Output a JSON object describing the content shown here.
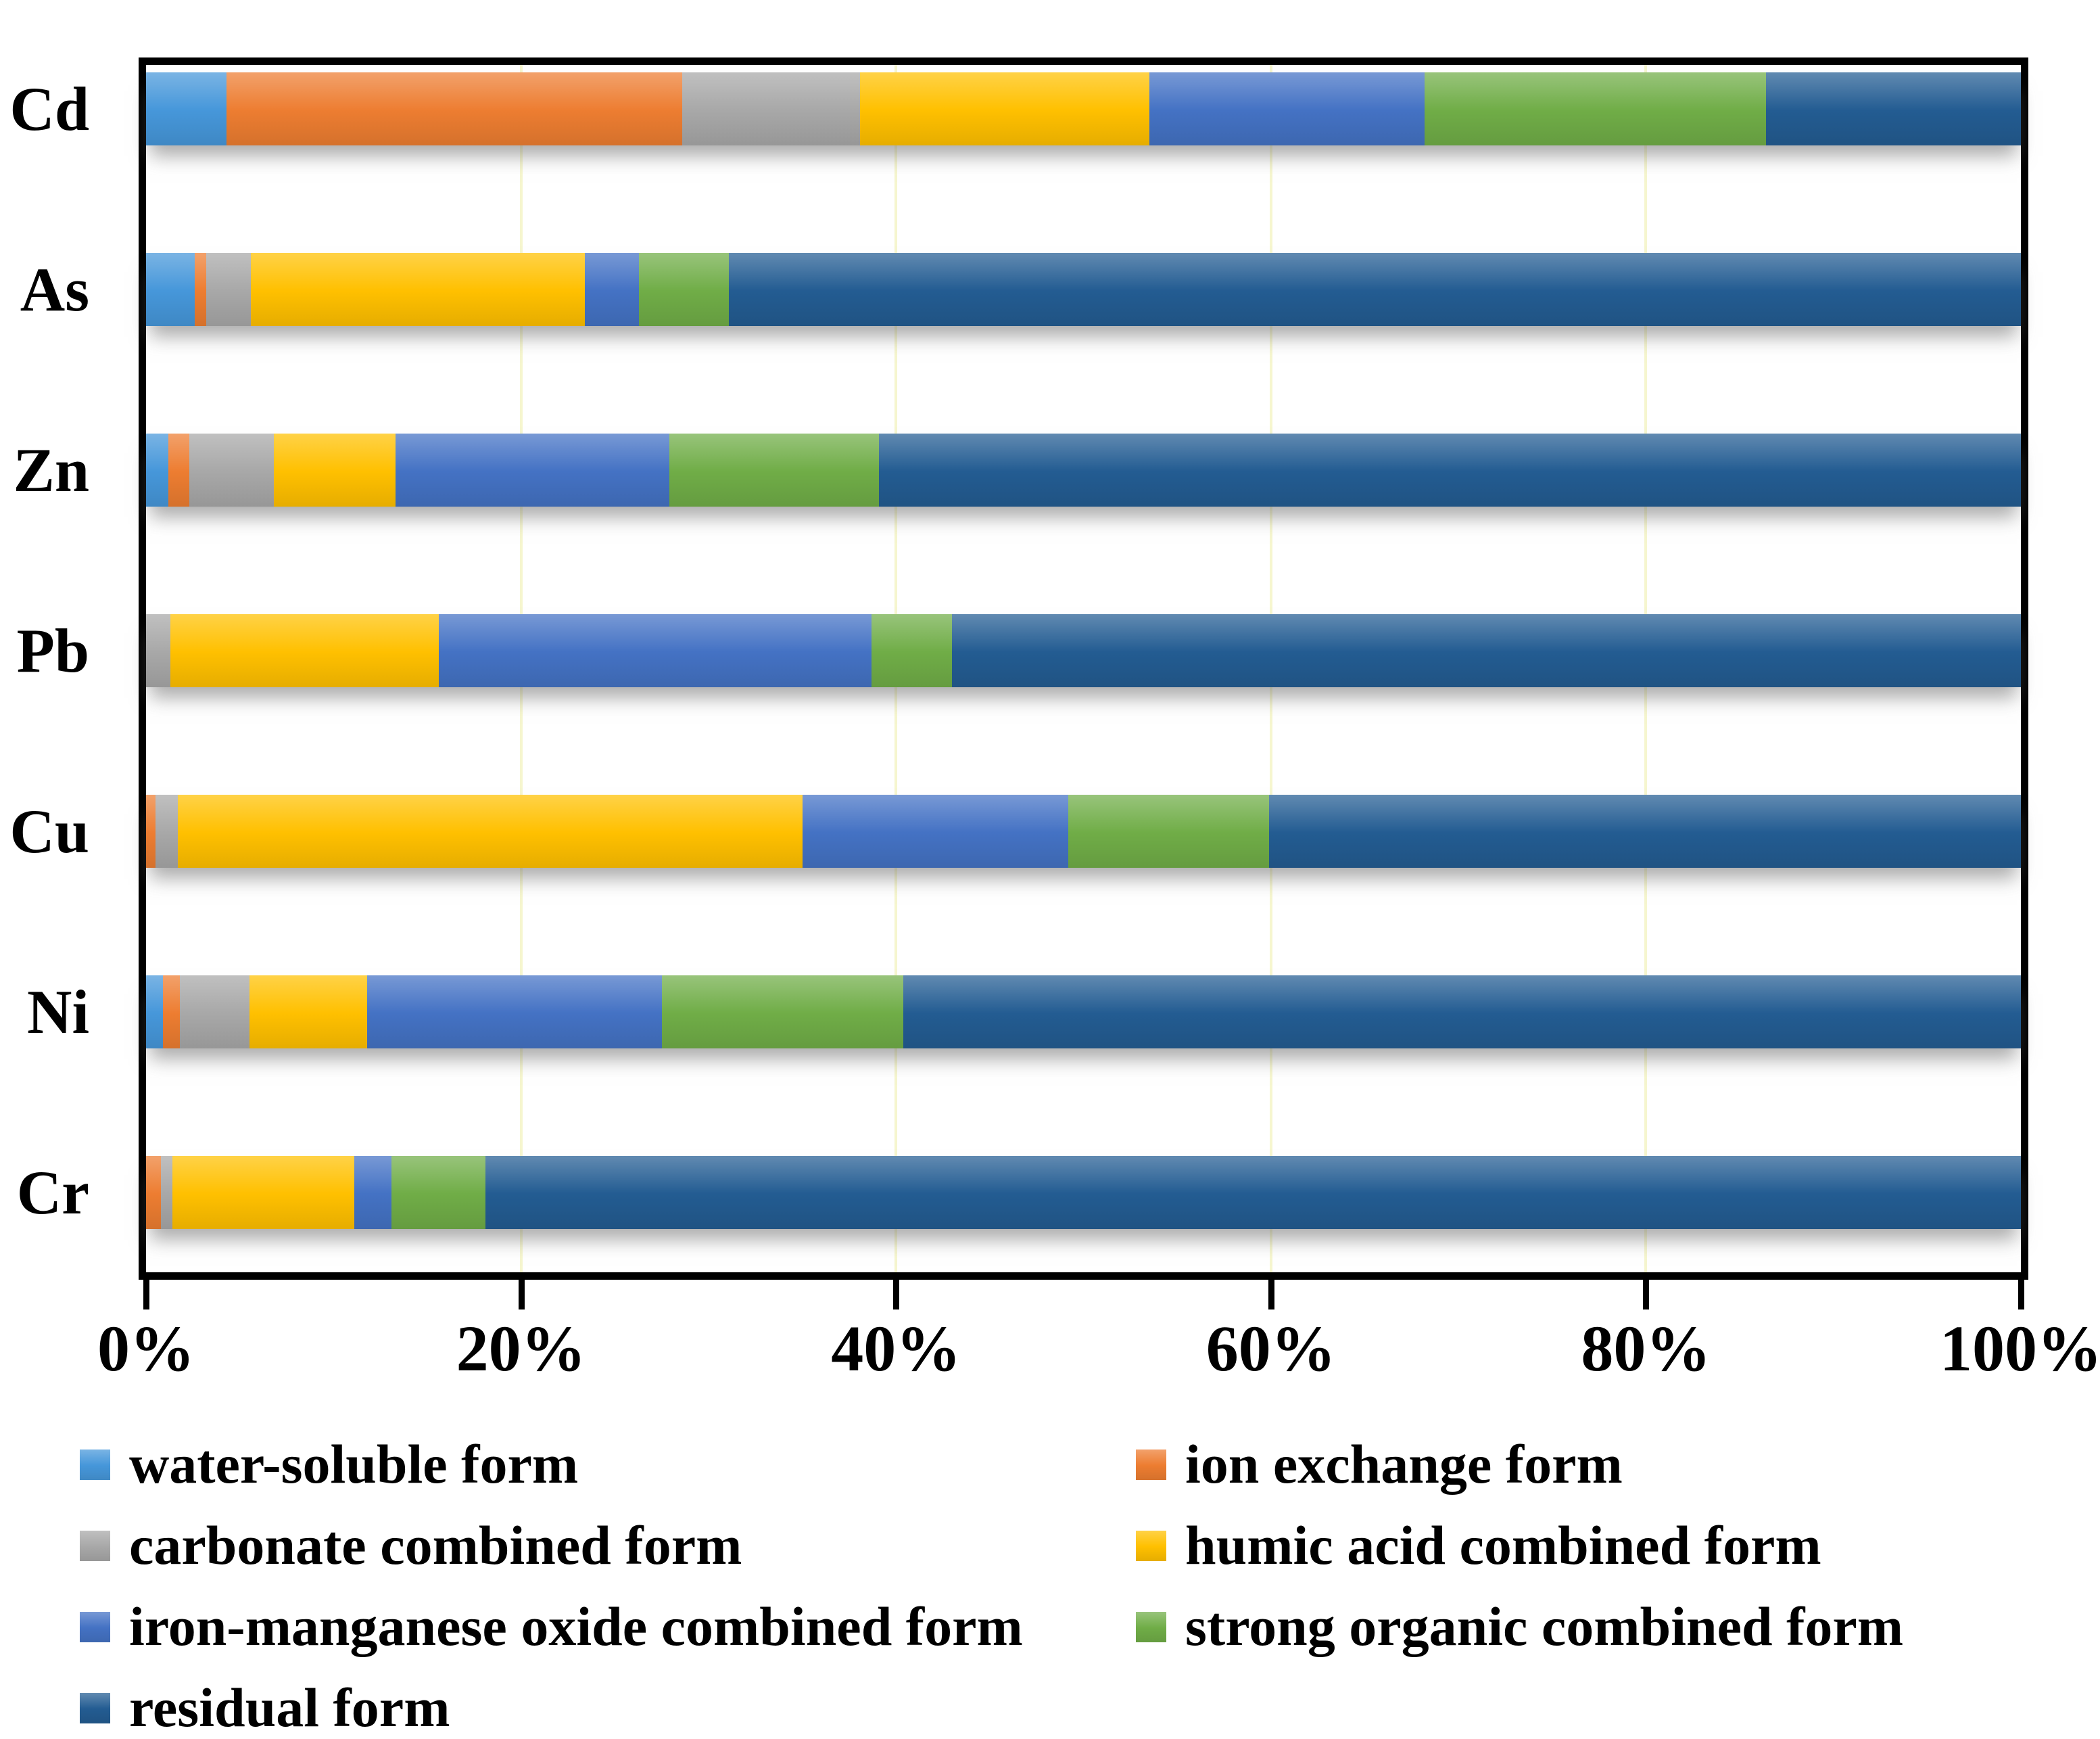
{
  "chart_data": {
    "type": "bar",
    "stacked": true,
    "orientation": "horizontal",
    "title": "",
    "xlabel": "",
    "ylabel": "",
    "xlim": [
      0,
      100
    ],
    "x_ticks": [
      "0%",
      "20%",
      "40%",
      "60%",
      "80%",
      "100%"
    ],
    "x_tick_values": [
      0,
      20,
      40,
      60,
      80,
      100
    ],
    "grid": "vertical-light-yellow",
    "legend_position": "bottom-two-columns",
    "categories": [
      "Cd",
      "As",
      "Zn",
      "Pb",
      "Cu",
      "Ni",
      "Cr"
    ],
    "series": [
      {
        "name": "water-soluble form",
        "color": "#4697DA",
        "values": [
          4.3,
          2.6,
          1.2,
          0,
          0,
          0.9,
          0
        ]
      },
      {
        "name": "ion exchange form",
        "color": "#ED7D31",
        "values": [
          24.3,
          0.6,
          1.1,
          0,
          0.5,
          0.9,
          0.8
        ]
      },
      {
        "name": "carbonate combined form",
        "color": "#A8A8A8",
        "values": [
          9.5,
          2.4,
          4.5,
          1.3,
          1.2,
          3.7,
          0.6
        ]
      },
      {
        "name": "humic acid combined form",
        "color": "#FFC000",
        "values": [
          15.4,
          17.8,
          6.5,
          14.3,
          33.3,
          6.3,
          9.7
        ]
      },
      {
        "name": "iron-manganese oxide combined form",
        "color": "#4472C4",
        "values": [
          14.7,
          2.9,
          14.6,
          23.1,
          14.2,
          15.7,
          2.0
        ]
      },
      {
        "name": "strong organic combined form",
        "color": "#70AD47",
        "values": [
          18.2,
          4.8,
          11.2,
          4.3,
          10.7,
          12.9,
          5.0
        ]
      },
      {
        "name": "residual form",
        "color": "#235C92",
        "values": [
          13.6,
          68.9,
          60.9,
          57.0,
          40.1,
          59.6,
          81.9
        ]
      }
    ],
    "colors": {
      "grid_line": "#f6f6cf",
      "axis": "#000000",
      "background": "#ffffff"
    }
  }
}
